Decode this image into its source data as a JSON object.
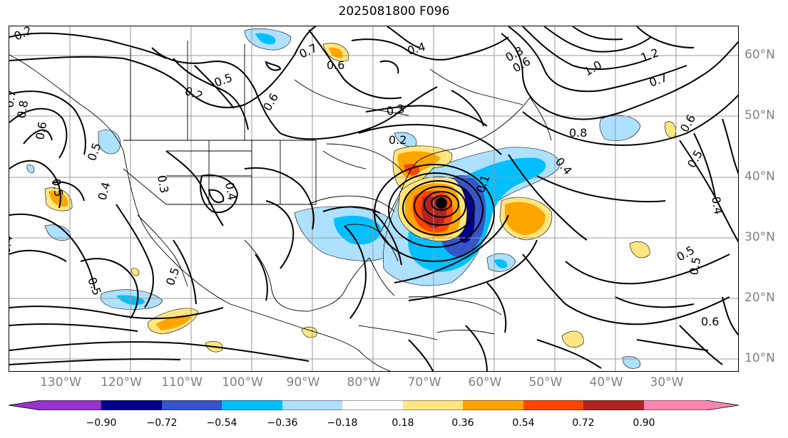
{
  "title": "2025081800 F096",
  "lon_labels": [
    "130°W",
    "120°W",
    "110°W",
    "100°W",
    "90°W",
    "80°W",
    "70°W",
    "60°W",
    "50°W",
    "40°W",
    "30°W"
  ],
  "lat_labels": [
    "60°N",
    "50°N",
    "40°N",
    "30°N",
    "20°N",
    "10°N"
  ],
  "colorbar": {
    "ticks": [
      "−0.90",
      "−0.72",
      "−0.54",
      "−0.36",
      "−0.18",
      "0.18",
      "0.36",
      "0.54",
      "0.72",
      "0.90"
    ],
    "colors": [
      "#9932cc",
      "#00008b",
      "#3655c8",
      "#00bfff",
      "#aee0ff",
      "#ffffff",
      "#ffe680",
      "#ffa500",
      "#ff4500",
      "#b22222",
      "#ff85b0"
    ]
  },
  "contour_labels": [
    "0.2",
    "0.7",
    "0.6",
    "0.4",
    "0.8",
    "0.6",
    "0.5",
    "0.6",
    "0.8",
    "0.7",
    "1.0",
    "1.2",
    "0.2",
    "0.5",
    "0.3",
    "0.2",
    "0.3",
    "0.4",
    "0.4",
    "0.5",
    "0.5",
    "0.4",
    "0.5",
    "0.6",
    "0.7",
    "0.5",
    "0.4",
    "0.8",
    "0.4",
    "0.5",
    "0.1",
    "0.6",
    "0.5",
    "0.6"
  ],
  "marker": "storm-center"
}
